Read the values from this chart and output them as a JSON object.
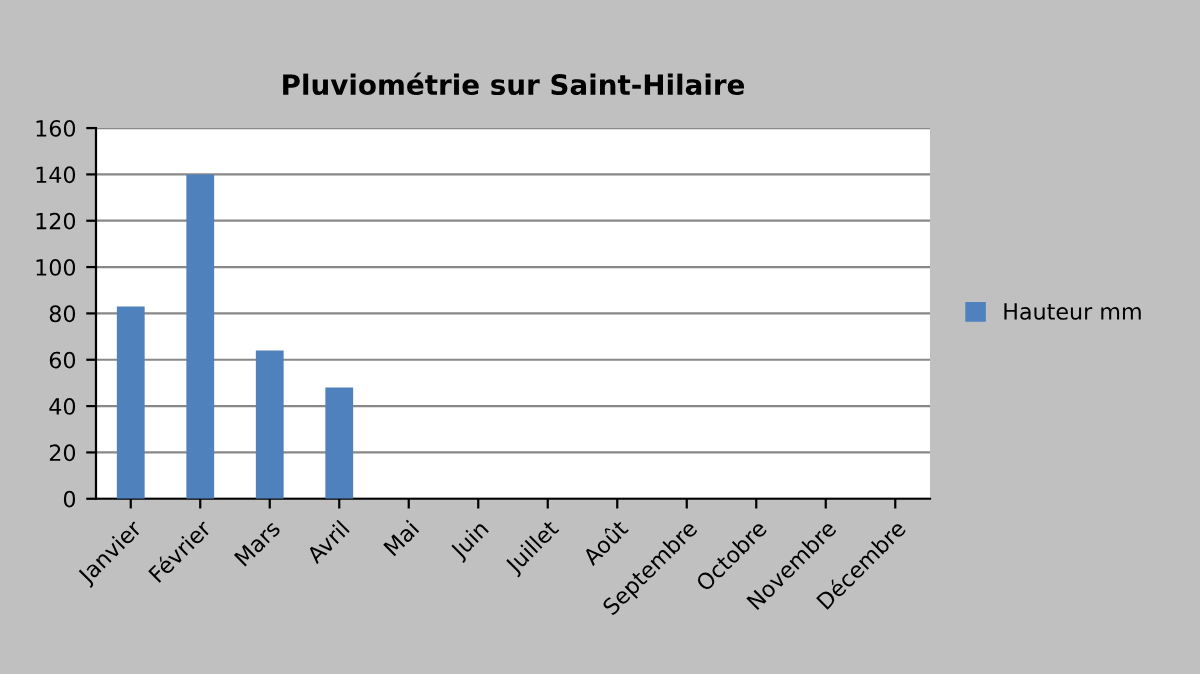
{
  "chart_data": {
    "type": "bar",
    "title": "Pluviométrie sur Saint-Hilaire",
    "categories": [
      "Janvier",
      "Février",
      "Mars",
      "Avril",
      "Mai",
      "Juin",
      "Juillet",
      "Août",
      "Septembre",
      "Octobre",
      "Novembre",
      "Décembre"
    ],
    "series": [
      {
        "name": "Hauteur mm",
        "color": "#4f81bd",
        "values": [
          83,
          140,
          64,
          48,
          null,
          null,
          null,
          null,
          null,
          null,
          null,
          null
        ]
      }
    ],
    "ylim": [
      0,
      160
    ],
    "yticks": [
      0,
      20,
      40,
      60,
      80,
      100,
      120,
      140,
      160
    ],
    "grid": "y",
    "legend": "right"
  }
}
